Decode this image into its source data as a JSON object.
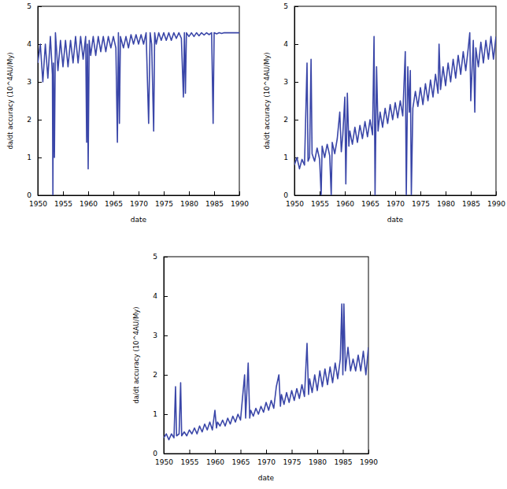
{
  "chart_data": [
    {
      "type": "line",
      "x_label": "date",
      "y_label": "da/dt accuracy (10^4AU/My)",
      "xlim": [
        1950,
        1990
      ],
      "ylim": [
        0,
        5
      ],
      "xticks": [
        1950,
        1955,
        1960,
        1965,
        1970,
        1975,
        1980,
        1985,
        1990
      ],
      "yticks": [
        0,
        1,
        2,
        3,
        4,
        5
      ],
      "x": [
        1950,
        1950.5,
        1951,
        1951.5,
        1952,
        1952.5,
        1952.9,
        1953.0,
        1953.1,
        1953.3,
        1953.5,
        1954,
        1954.5,
        1955,
        1955.5,
        1956,
        1956.5,
        1957,
        1957.5,
        1958,
        1958.5,
        1959,
        1959.5,
        1959.7,
        1959.85,
        1960.0,
        1960.2,
        1960.5,
        1961,
        1961.5,
        1962,
        1962.5,
        1963,
        1963.5,
        1964,
        1964.5,
        1965,
        1965.5,
        1965.8,
        1966,
        1966.2,
        1966.4,
        1967,
        1967.5,
        1968,
        1968.5,
        1969,
        1969.5,
        1970,
        1970.5,
        1971,
        1971.5,
        1972,
        1972.3,
        1972.6,
        1973,
        1973.2,
        1973.5,
        1974,
        1974.5,
        1975,
        1975.5,
        1976,
        1976.5,
        1977,
        1977.5,
        1978,
        1978.5,
        1978.9,
        1979.1,
        1979.3,
        1979.5,
        1980,
        1980.5,
        1981,
        1981.5,
        1982,
        1982.5,
        1983,
        1983.5,
        1984,
        1984.5,
        1984.8,
        1985,
        1985.5,
        1986,
        1986.5,
        1987,
        1988,
        1989,
        1990
      ],
      "series": [
        {
          "color": "#3a46a8",
          "values": [
            3.5,
            4.0,
            3.0,
            4.0,
            3.1,
            4.2,
            3.2,
            0,
            3.5,
            1.0,
            4.3,
            3.3,
            4.1,
            3.4,
            4.1,
            3.4,
            4.1,
            3.5,
            4.2,
            3.5,
            4.2,
            3.6,
            4.2,
            1.4,
            4.0,
            0.7,
            4.1,
            3.7,
            4.2,
            3.7,
            4.2,
            3.8,
            4.2,
            3.8,
            4.2,
            3.9,
            4.2,
            3.9,
            1.4,
            4.3,
            1.9,
            4.2,
            3.9,
            4.2,
            3.9,
            4.25,
            4.0,
            4.25,
            4.0,
            4.25,
            4.0,
            4.3,
            1.9,
            4.3,
            4.0,
            1.7,
            4.3,
            4.0,
            4.3,
            4.1,
            4.3,
            4.1,
            4.3,
            4.1,
            4.3,
            4.15,
            4.3,
            4.15,
            2.6,
            4.3,
            2.7,
            4.3,
            4.2,
            4.3,
            4.2,
            4.3,
            4.22,
            4.3,
            4.24,
            4.3,
            4.25,
            4.3,
            1.9,
            4.3,
            4.27,
            4.3,
            4.28,
            4.3,
            4.3,
            4.3,
            4.3
          ]
        }
      ]
    },
    {
      "type": "line",
      "x_label": "date",
      "y_label": "da/dt accuracy (10^4AU/My)",
      "xlim": [
        1950,
        1990
      ],
      "ylim": [
        0,
        5
      ],
      "xticks": [
        1950,
        1955,
        1960,
        1965,
        1970,
        1975,
        1980,
        1985,
        1990
      ],
      "yticks": [
        0,
        1,
        2,
        3,
        4,
        5
      ],
      "x": [
        1950,
        1950.5,
        1951,
        1951.5,
        1952,
        1952.5,
        1952.7,
        1953,
        1953.3,
        1953.5,
        1954,
        1954.5,
        1955,
        1955.3,
        1955.5,
        1956,
        1956.5,
        1957,
        1957.3,
        1957.5,
        1958,
        1958.5,
        1959,
        1959.3,
        1959.6,
        1960,
        1960.2,
        1960.5,
        1960.8,
        1961,
        1961.5,
        1962,
        1962.5,
        1963,
        1963.5,
        1964,
        1964.5,
        1965,
        1965.5,
        1965.8,
        1966,
        1966.3,
        1966.6,
        1967,
        1967.5,
        1968,
        1968.5,
        1969,
        1969.5,
        1970,
        1970.5,
        1971,
        1971.5,
        1972,
        1972.2,
        1972.5,
        1972.8,
        1973,
        1973.2,
        1973.5,
        1974,
        1974.5,
        1975,
        1975.5,
        1976,
        1976.5,
        1977,
        1977.5,
        1978,
        1978.5,
        1978.7,
        1979,
        1979.5,
        1980,
        1980.5,
        1981,
        1981.5,
        1982,
        1982.5,
        1983,
        1983.5,
        1984,
        1984.5,
        1984.8,
        1985,
        1985.5,
        1985.8,
        1986,
        1986.5,
        1987,
        1987.5,
        1988,
        1988.5,
        1989,
        1989.5,
        1990
      ],
      "series": [
        {
          "color": "#3a46a8",
          "values": [
            0.8,
            1.0,
            0.7,
            0.95,
            0.8,
            3.5,
            0.9,
            1.0,
            3.6,
            1.1,
            0.9,
            1.25,
            0.95,
            0,
            1.3,
            1.0,
            1.35,
            1.05,
            0,
            1.4,
            1.1,
            1.5,
            2.2,
            1.15,
            1.6,
            2.6,
            0.3,
            2.7,
            1.3,
            1.7,
            1.35,
            1.8,
            1.4,
            1.85,
            1.5,
            1.95,
            1.55,
            2.0,
            1.6,
            4.2,
            0,
            3.4,
            1.7,
            2.2,
            1.8,
            2.3,
            1.9,
            2.4,
            2.0,
            2.45,
            2.05,
            2.5,
            2.1,
            3.8,
            0,
            3.4,
            2.2,
            3.3,
            0,
            2.3,
            2.75,
            2.35,
            2.85,
            2.4,
            2.95,
            2.5,
            3.05,
            2.6,
            3.2,
            2.7,
            4.0,
            2.8,
            3.4,
            2.9,
            3.5,
            3.0,
            3.6,
            3.1,
            3.7,
            3.2,
            3.8,
            3.3,
            3.9,
            4.3,
            2.5,
            4.1,
            2.2,
            3.9,
            3.4,
            4.05,
            3.5,
            4.1,
            3.6,
            4.2,
            3.6,
            4.2
          ]
        }
      ]
    },
    {
      "type": "line",
      "x_label": "date",
      "y_label": "da/dt accuracy (10^4AU/My)",
      "xlim": [
        1950,
        1990
      ],
      "ylim": [
        0,
        5
      ],
      "xticks": [
        1950,
        1955,
        1960,
        1965,
        1970,
        1975,
        1980,
        1985,
        1990
      ],
      "yticks": [
        0,
        1,
        2,
        3,
        4,
        5
      ],
      "x": [
        1950,
        1950.5,
        1951,
        1951.5,
        1952,
        1952.3,
        1952.5,
        1953,
        1953.3,
        1953.5,
        1954,
        1954.5,
        1955,
        1955.5,
        1956,
        1956.5,
        1957,
        1957.5,
        1958,
        1958.5,
        1959,
        1959.5,
        1960,
        1960.3,
        1960.5,
        1961,
        1961.5,
        1962,
        1962.5,
        1963,
        1963.5,
        1964,
        1964.5,
        1965,
        1965.8,
        1966,
        1966.5,
        1966.8,
        1967,
        1967.5,
        1968,
        1968.5,
        1969,
        1969.5,
        1970,
        1970.5,
        1971,
        1971.5,
        1972,
        1972.5,
        1972.8,
        1973,
        1973.5,
        1974,
        1974.5,
        1975,
        1975.5,
        1976,
        1976.5,
        1977,
        1977.5,
        1978,
        1978.3,
        1978.5,
        1979,
        1979.5,
        1980,
        1980.5,
        1981,
        1981.5,
        1982,
        1982.5,
        1983,
        1983.5,
        1984,
        1984.5,
        1984.8,
        1985,
        1985.2,
        1985.5,
        1986,
        1986.5,
        1987,
        1987.5,
        1988,
        1988.5,
        1989,
        1989.5,
        1990
      ],
      "series": [
        {
          "color": "#3a46a8",
          "values": [
            0.4,
            0.5,
            0.35,
            0.5,
            0.4,
            1.7,
            0.45,
            0.5,
            1.8,
            0.45,
            0.55,
            0.45,
            0.6,
            0.5,
            0.65,
            0.5,
            0.7,
            0.55,
            0.75,
            0.6,
            0.8,
            0.6,
            1.1,
            0.65,
            0.8,
            0.7,
            0.85,
            0.7,
            0.9,
            0.75,
            0.95,
            0.8,
            1.0,
            0.85,
            2.0,
            0.9,
            2.3,
            0.9,
            1.1,
            0.95,
            1.15,
            1.0,
            1.2,
            1.05,
            1.3,
            1.1,
            1.35,
            1.15,
            1.7,
            2.0,
            1.2,
            1.5,
            1.25,
            1.55,
            1.3,
            1.6,
            1.35,
            1.65,
            1.4,
            1.75,
            1.45,
            2.8,
            1.5,
            1.9,
            1.55,
            2.0,
            1.6,
            2.1,
            1.7,
            2.15,
            1.75,
            2.2,
            1.8,
            2.3,
            1.9,
            2.4,
            3.8,
            2.0,
            3.8,
            2.1,
            2.7,
            2.1,
            2.4,
            2.1,
            2.5,
            2.1,
            2.6,
            2.0,
            2.7
          ]
        }
      ]
    }
  ]
}
